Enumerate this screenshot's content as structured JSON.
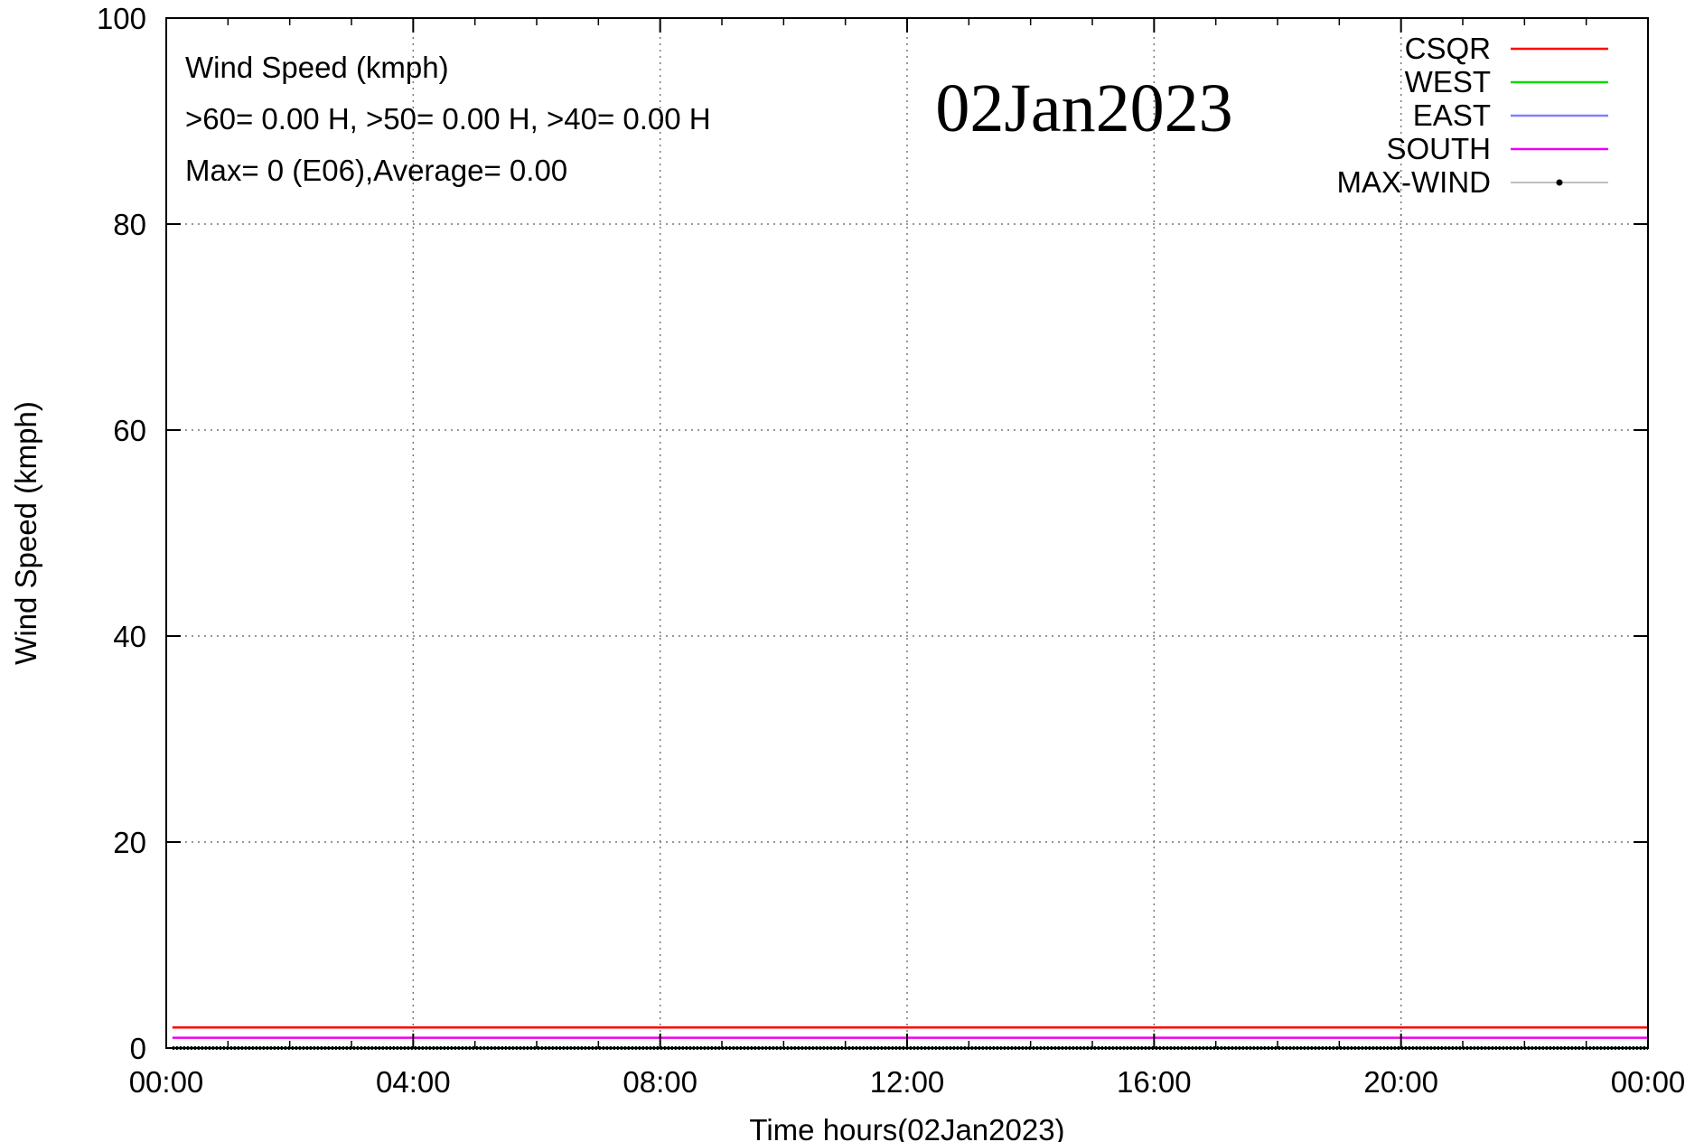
{
  "chart_data": {
    "type": "line",
    "date_label": "02Jan2023",
    "xlabel": "Time hours(02Jan2023)",
    "ylabel": "Wind Speed (kmph)",
    "ylim": [
      0,
      100
    ],
    "xlim": [
      "00:00",
      "00:00"
    ],
    "x_range_hours": [
      0,
      24
    ],
    "y_ticks": [
      0,
      20,
      40,
      60,
      80,
      100
    ],
    "y_tick_labels": [
      "0",
      "20",
      "40",
      "60",
      "80",
      "100"
    ],
    "x_ticks_hours": [
      0,
      4,
      8,
      12,
      16,
      20,
      24
    ],
    "x_tick_labels": [
      "00:00",
      "04:00",
      "08:00",
      "12:00",
      "16:00",
      "20:00",
      "00:00"
    ],
    "grid": true,
    "legend_position": "top-right",
    "annotations": [
      "Wind Speed (kmph)",
      ">60=  0.00 H, >50=  0.00 H, >40=  0.00 H",
      "Max= 0 (E06),Average=  0.00"
    ],
    "series": [
      {
        "name": "CSQR",
        "color": "#ff0000",
        "style": "line",
        "x": [
          0.1,
          24
        ],
        "y": [
          2,
          2
        ]
      },
      {
        "name": "WEST",
        "color": "#00dd00",
        "style": "line",
        "x": [
          0.1,
          24
        ],
        "y": [
          0,
          0
        ]
      },
      {
        "name": "EAST",
        "color": "#8080ff",
        "style": "line",
        "x": [
          0.1,
          24
        ],
        "y": [
          0,
          0
        ]
      },
      {
        "name": "SOUTH",
        "color": "#ee00ee",
        "style": "line",
        "x": [
          0.1,
          24
        ],
        "y": [
          1,
          1
        ]
      },
      {
        "name": "MAX-WIND",
        "color": "#000000",
        "style": "points",
        "x": [
          0.1,
          24
        ],
        "y": [
          0,
          0
        ]
      }
    ]
  }
}
